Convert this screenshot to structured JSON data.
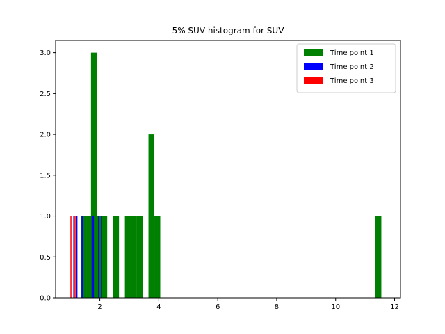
{
  "chart_data": {
    "type": "bar",
    "title": "5% SUV histogram for SUV",
    "xlabel": "",
    "ylabel": "",
    "xlim": [
      0.5,
      12.2
    ],
    "ylim": [
      0,
      3.15
    ],
    "xticks": [
      "2",
      "4",
      "6",
      "8",
      "10",
      "12"
    ],
    "yticks": [
      "0.0",
      "0.5",
      "1.0",
      "1.5",
      "2.0",
      "2.5",
      "3.0"
    ],
    "grid": false,
    "legend_position": "top-right",
    "bin_width": 0.2,
    "series": [
      {
        "name": "Time point 1",
        "color": "#008000",
        "bin_width": 0.2,
        "bars": [
          {
            "x": 1.45,
            "y": 1
          },
          {
            "x": 1.65,
            "y": 1
          },
          {
            "x": 1.8,
            "y": 3
          },
          {
            "x": 1.95,
            "y": 1
          },
          {
            "x": 2.15,
            "y": 1
          },
          {
            "x": 2.55,
            "y": 1
          },
          {
            "x": 2.95,
            "y": 1
          },
          {
            "x": 3.15,
            "y": 1
          },
          {
            "x": 3.35,
            "y": 1
          },
          {
            "x": 3.75,
            "y": 2
          },
          {
            "x": 3.95,
            "y": 1
          },
          {
            "x": 11.45,
            "y": 1
          }
        ]
      },
      {
        "name": "Time point 2",
        "color": "#0000ff",
        "bin_width": 0.04,
        "bars": [
          {
            "x": 1.12,
            "y": 1
          },
          {
            "x": 1.22,
            "y": 1
          },
          {
            "x": 1.4,
            "y": 1
          },
          {
            "x": 1.74,
            "y": 1
          },
          {
            "x": 1.78,
            "y": 1
          },
          {
            "x": 1.96,
            "y": 1
          },
          {
            "x": 2.06,
            "y": 1
          }
        ]
      },
      {
        "name": "Time point 3",
        "color": "#ff0000",
        "bin_width": 0.03,
        "bars": [
          {
            "x": 1.02,
            "y": 1
          },
          {
            "x": 1.16,
            "y": 1
          }
        ]
      }
    ]
  }
}
